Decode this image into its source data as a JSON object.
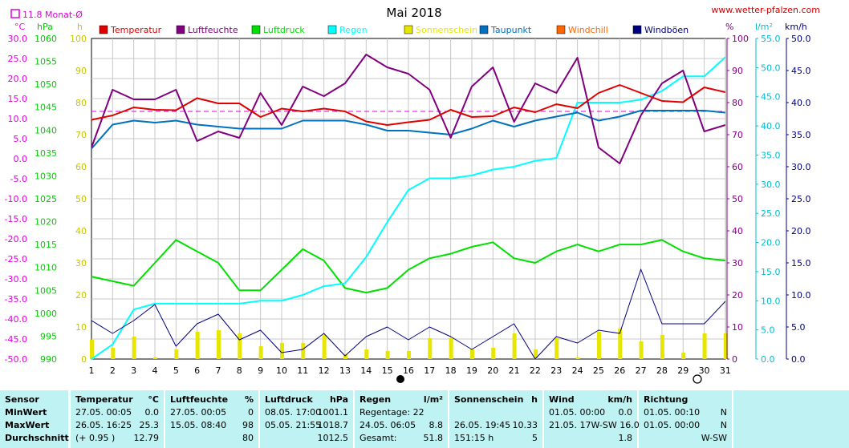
{
  "header": {
    "title": "Mai 2018",
    "website": "www.wetter-pfalzen.com",
    "month_avg_label": "11.8 Monat-Ø"
  },
  "units": {
    "celsius": "°C",
    "hpa": "hPa",
    "hours": "h",
    "percent": "%",
    "rain": "l/m²",
    "speed": "km/h"
  },
  "legend": [
    {
      "label": "Temperatur",
      "color": "#e00000"
    },
    {
      "label": "Luftfeuchte",
      "color": "#800080"
    },
    {
      "label": "Luftdruck",
      "color": "#00e000"
    },
    {
      "label": "Regen",
      "color": "#00ffff"
    },
    {
      "label": "Sonnenschein",
      "color": "#e6e600"
    },
    {
      "label": "Taupunkt",
      "color": "#0070c0"
    },
    {
      "label": "Windchill",
      "color": "#ff6600"
    },
    {
      "label": "Windböen",
      "color": "#000080"
    }
  ],
  "chart_data": {
    "type": "line",
    "title": "Mai 2018",
    "x": [
      1,
      2,
      3,
      4,
      5,
      6,
      7,
      8,
      9,
      10,
      11,
      12,
      13,
      14,
      15,
      16,
      17,
      18,
      19,
      20,
      21,
      22,
      23,
      24,
      25,
      26,
      27,
      28,
      29,
      30,
      31
    ],
    "axes": {
      "temperature_c": {
        "range": [
          -50,
          30
        ],
        "ticks": [
          "30.0",
          "25.0",
          "20.0",
          "15.0",
          "10.0",
          "5.0",
          "0.0",
          "-5.0",
          "-10.0",
          "-15.0",
          "-20.0",
          "-25.0",
          "-30.0",
          "-35.0",
          "-40.0",
          "-45.0",
          "-50.0"
        ]
      },
      "pressure_hpa": {
        "range": [
          990,
          1060
        ],
        "ticks": [
          "1060",
          "1055",
          "1050",
          "1045",
          "1040",
          "1035",
          "1030",
          "1025",
          "1020",
          "1015",
          "1010",
          "1005",
          "1000",
          "995",
          "990"
        ]
      },
      "sunshine_h": {
        "range": [
          0,
          100
        ],
        "ticks": [
          "100",
          "90",
          "80",
          "70",
          "60",
          "50",
          "40",
          "30",
          "20",
          "10",
          "0"
        ]
      },
      "humidity_pct": {
        "range": [
          0,
          100
        ],
        "ticks": [
          "100",
          "90",
          "80",
          "70",
          "60",
          "50",
          "40",
          "30",
          "20",
          "10",
          "0"
        ]
      },
      "rain_lm2": {
        "range": [
          0,
          55
        ],
        "ticks": [
          "55.0",
          "50.0",
          "45.0",
          "40.0",
          "35.0",
          "30.0",
          "25.0",
          "20.0",
          "15.0",
          "10.0",
          "5.0",
          "0.0"
        ]
      },
      "wind_kmh": {
        "range": [
          0,
          50
        ],
        "ticks": [
          "50.0",
          "45.0",
          "40.0",
          "35.0",
          "30.0",
          "25.0",
          "20.0",
          "15.0",
          "10.0",
          "5.0",
          "0.0"
        ]
      }
    },
    "month_avg_temperature": 11.8,
    "series": [
      {
        "name": "Temperatur",
        "axis": "temperature_c",
        "color": "#e00000",
        "values": [
          9.7,
          10.8,
          12.8,
          12.2,
          12.1,
          15.1,
          13.8,
          13.8,
          10.4,
          12.5,
          11.8,
          12.5,
          11.8,
          9.3,
          8.4,
          9.1,
          9.7,
          12.2,
          10.4,
          10.6,
          12.8,
          11.6,
          13.6,
          12.6,
          16.4,
          18.4,
          16.4,
          14.4,
          14.1,
          17.8,
          16.6
        ]
      },
      {
        "name": "Luftfeuchte",
        "axis": "humidity_pct",
        "color": "#800080",
        "values": [
          66,
          84,
          81,
          81,
          84,
          68,
          71,
          69,
          83,
          73,
          85,
          82,
          86,
          95,
          91,
          89,
          84,
          69,
          85,
          91,
          74,
          86,
          83,
          94,
          66,
          61,
          76,
          86,
          90,
          71,
          73
        ]
      },
      {
        "name": "Luftdruck",
        "axis": "pressure_hpa",
        "color": "#00e000",
        "values": [
          1008.0,
          1007.0,
          1006.0,
          1011.0,
          1016.0,
          1013.5,
          1011.0,
          1005.0,
          1005.0,
          1009.5,
          1014.0,
          1011.5,
          1005.5,
          1004.5,
          1005.5,
          1009.5,
          1012.0,
          1013.0,
          1014.5,
          1015.5,
          1012.0,
          1011.0,
          1013.5,
          1015.0,
          1013.5,
          1015.0,
          1015.0,
          1016.0,
          1013.5,
          1012.0,
          1011.5
        ]
      },
      {
        "name": "Regen",
        "axis": "rain_lm2",
        "color": "#00ffff",
        "values": [
          0.0,
          2.5,
          8.5,
          9.5,
          9.5,
          9.5,
          9.5,
          9.5,
          10.0,
          10.0,
          11.0,
          12.5,
          13.0,
          17.5,
          23.5,
          29.0,
          31.0,
          31.0,
          31.5,
          32.5,
          33.0,
          34.0,
          34.5,
          44.0,
          44.0,
          44.0,
          44.5,
          46.0,
          48.5,
          48.5,
          51.8
        ]
      },
      {
        "name": "Sonnenschein",
        "axis": "sunshine_h",
        "color": "#e6e600",
        "values": [
          6.0,
          3.5,
          7.0,
          0.5,
          3.0,
          8.5,
          9.0,
          8.0,
          4.0,
          5.0,
          5.0,
          7.5,
          1.5,
          3.0,
          2.5,
          2.5,
          6.5,
          6.5,
          3.0,
          3.5,
          8.0,
          3.0,
          6.5,
          0.5,
          8.5,
          9.5,
          5.5,
          7.5,
          2.0,
          8.0,
          8.0
        ]
      },
      {
        "name": "Taupunkt",
        "axis": "temperature_c",
        "color": "#0070c0",
        "values": [
          2.5,
          8.5,
          9.5,
          9.0,
          9.5,
          8.5,
          8.0,
          7.5,
          7.5,
          7.5,
          9.5,
          9.5,
          9.5,
          8.5,
          7.0,
          7.0,
          6.5,
          6.0,
          7.5,
          9.5,
          8.0,
          9.5,
          10.5,
          11.5,
          9.5,
          10.5,
          12.0,
          12.0,
          12.0,
          12.0,
          11.5
        ]
      },
      {
        "name": "Windböen",
        "axis": "wind_kmh",
        "color": "#000080",
        "values": [
          6.0,
          4.0,
          6.0,
          8.5,
          2.0,
          5.5,
          7.0,
          3.0,
          4.5,
          1.0,
          1.5,
          4.0,
          0.5,
          3.5,
          5.0,
          3.0,
          5.0,
          3.5,
          1.5,
          3.5,
          5.5,
          0.0,
          3.5,
          2.5,
          4.5,
          4.0,
          14.0,
          5.5,
          5.5,
          5.5,
          9.0
        ]
      }
    ]
  },
  "table": {
    "row_labels": [
      "Sensor",
      "MinWert",
      "MaxWert",
      "Durchschnitt"
    ],
    "temperature": {
      "title": "Temperatur",
      "unit": "°C",
      "min": "27.05.  00:05",
      "min_val": "0.0",
      "max": "26.05.  16:25",
      "max_val": "25.3",
      "avg": "(+ 0.95 )",
      "avg_val": "12.79"
    },
    "humidity": {
      "title": "Luftfeuchte",
      "unit": "%",
      "min": "27.05.  00:05",
      "min_val": "0",
      "max": "15.05.  08:40",
      "max_val": "98",
      "avg_val": "80"
    },
    "pressure": {
      "title": "Luftdruck",
      "unit": "hPa",
      "min": "08.05.  17:00",
      "min_val": "1001.1",
      "max": "05.05.  21:55",
      "max_val": "1018.7",
      "avg_val": "1012.5"
    },
    "rain": {
      "title": "Regen",
      "unit": "l/m²",
      "row1": "Regentage: 22",
      "row2": "24.05.  06:05",
      "row2_val": "8.8",
      "row3": "Gesamt:",
      "row3_val": "51.8"
    },
    "sunshine": {
      "title": "Sonnenschein",
      "unit": "h",
      "row2": "26.05.  19:45",
      "row2_val": "10.33",
      "row3": "151:15 h",
      "row3_val": "5"
    },
    "wind": {
      "title": "Wind",
      "unit": "km/h",
      "min": "01.05.  00:00",
      "min_val": "0.0",
      "max": "21.05.  17W-SW 16.0",
      "avg_val": "1.8"
    },
    "direction": {
      "title": "Richtung",
      "min": "01.05.  00:10",
      "min_val": "N",
      "max": "01.05.  00:00",
      "max_val": "N",
      "avg_val": "W-SW"
    }
  }
}
